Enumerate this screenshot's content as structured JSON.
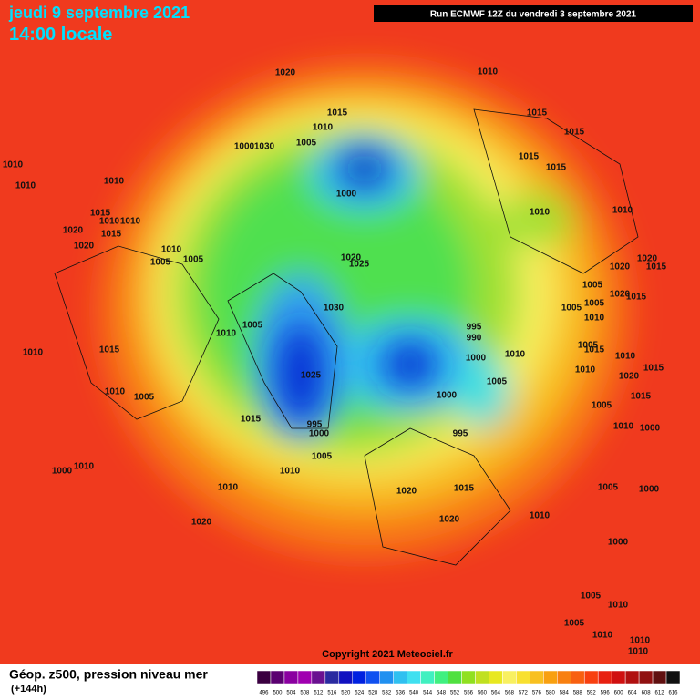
{
  "header": {
    "date": "jeudi 9 septembre 2021",
    "time": "14:00 locale",
    "run": "Run ECMWF 12Z du vendredi 3 septembre 2021"
  },
  "map": {
    "copyright": "Copyright 2021 Meteociel.fr",
    "isobar_labels": [
      1020,
      1010,
      1015,
      1010,
      1015,
      1015,
      1000,
      1030,
      1005,
      1010,
      1010,
      1010,
      1015,
      1015,
      1000,
      1010,
      1010,
      1015,
      1010,
      1010,
      1020,
      1015,
      1020,
      1010,
      1005,
      1005,
      1020,
      1025,
      1020,
      1020,
      1015,
      1005,
      1020,
      1015,
      1005,
      1030,
      1005,
      1010,
      1005,
      995,
      990,
      1010,
      1005,
      1015,
      1010,
      1015,
      1010,
      1000,
      1010,
      1015,
      1020,
      1025,
      1010,
      1005,
      1010,
      1005,
      1000,
      1015,
      1005,
      1010,
      1000,
      1015,
      995,
      1000,
      995,
      1005,
      1010,
      1000,
      1010,
      1010,
      1020,
      1015,
      1005,
      1000,
      1010,
      1020,
      1020,
      1000,
      1005,
      1010,
      1005,
      1010,
      1010,
      1010
    ]
  },
  "footer": {
    "field": "Géop. z500, pression niveau mer",
    "lead": "(+144h)",
    "levels": [
      496,
      500,
      504,
      508,
      512,
      516,
      520,
      524,
      528,
      532,
      536,
      540,
      544,
      548,
      552,
      556,
      560,
      564,
      568,
      572,
      576,
      580,
      584,
      588,
      592,
      596,
      600,
      604,
      608,
      612,
      616
    ],
    "colors": [
      "#3a0040",
      "#5a0070",
      "#8a00a0",
      "#a000b0",
      "#6a1090",
      "#2a2aa0",
      "#1010c0",
      "#0020e0",
      "#1050f0",
      "#2090f0",
      "#30c0f0",
      "#40e0f0",
      "#40f0c0",
      "#40f080",
      "#50e040",
      "#90e020",
      "#c0e020",
      "#e8e820",
      "#f8f060",
      "#f8e030",
      "#f8c020",
      "#f8a010",
      "#f88010",
      "#f86010",
      "#f84010",
      "#e82010",
      "#d01010",
      "#b01010",
      "#901010",
      "#601010",
      "#101010"
    ]
  }
}
